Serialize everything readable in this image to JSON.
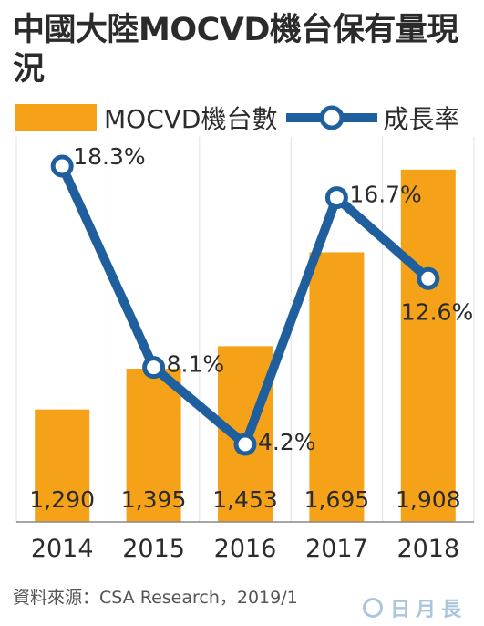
{
  "title": "中國大陸MOCVD機台保有量現況",
  "legend": {
    "bar_label": "MOCVD機台數",
    "line_label": "成長率"
  },
  "source": "資料來源：CSA Research，2019/1",
  "watermark": "日月長",
  "colors": {
    "bar": "#f5a219",
    "line": "#1f5f9e",
    "marker_fill": "#ffffff",
    "grid": "#e0e0e0",
    "text": "#2b2b2b"
  },
  "chart_data": {
    "type": "bar",
    "categories": [
      "2014",
      "2015",
      "2016",
      "2017",
      "2018"
    ],
    "series": [
      {
        "name": "MOCVD機台數",
        "type": "bar",
        "values": [
          1290,
          1395,
          1453,
          1695,
          1908
        ],
        "labels": [
          "1,290",
          "1,395",
          "1,453",
          "1,695",
          "1,908"
        ]
      },
      {
        "name": "成長率",
        "type": "line",
        "values": [
          18.3,
          8.1,
          4.2,
          16.7,
          12.6
        ],
        "labels": [
          "18.3%",
          "8.1%",
          "4.2%",
          "16.7%",
          "12.6%"
        ]
      }
    ],
    "legend_position": "top-left",
    "grid": true
  }
}
